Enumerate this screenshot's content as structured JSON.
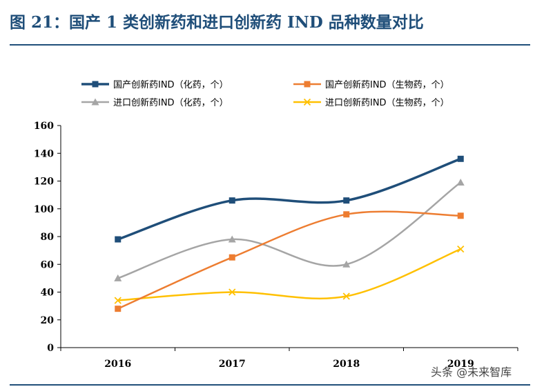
{
  "title": "图 21：国产 1 类创新药和进口创新药 IND 品种数量对比",
  "watermark": "头条 @未来智库",
  "chart_data": {
    "type": "line",
    "x": [
      "2016",
      "2017",
      "2018",
      "2019"
    ],
    "ylim": [
      0,
      160
    ],
    "yticks": [
      0,
      20,
      40,
      60,
      80,
      100,
      120,
      140,
      160
    ],
    "grid": false,
    "legend_position": "top",
    "series": [
      {
        "name": "国产创新药IND（化药，个）",
        "values": [
          78,
          106,
          106,
          136
        ],
        "color": "#1f4e79",
        "marker": "square"
      },
      {
        "name": "国产创新药IND（生物药，个）",
        "values": [
          28,
          65,
          96,
          95
        ],
        "color": "#ed7d31",
        "marker": "square"
      },
      {
        "name": "进口创新药IND（化药，个）",
        "values": [
          50,
          78,
          60,
          119
        ],
        "color": "#a5a5a5",
        "marker": "triangle"
      },
      {
        "name": "进口创新药IND（生物药，个）",
        "values": [
          34,
          40,
          37,
          71
        ],
        "color": "#ffc000",
        "marker": "x"
      }
    ]
  }
}
